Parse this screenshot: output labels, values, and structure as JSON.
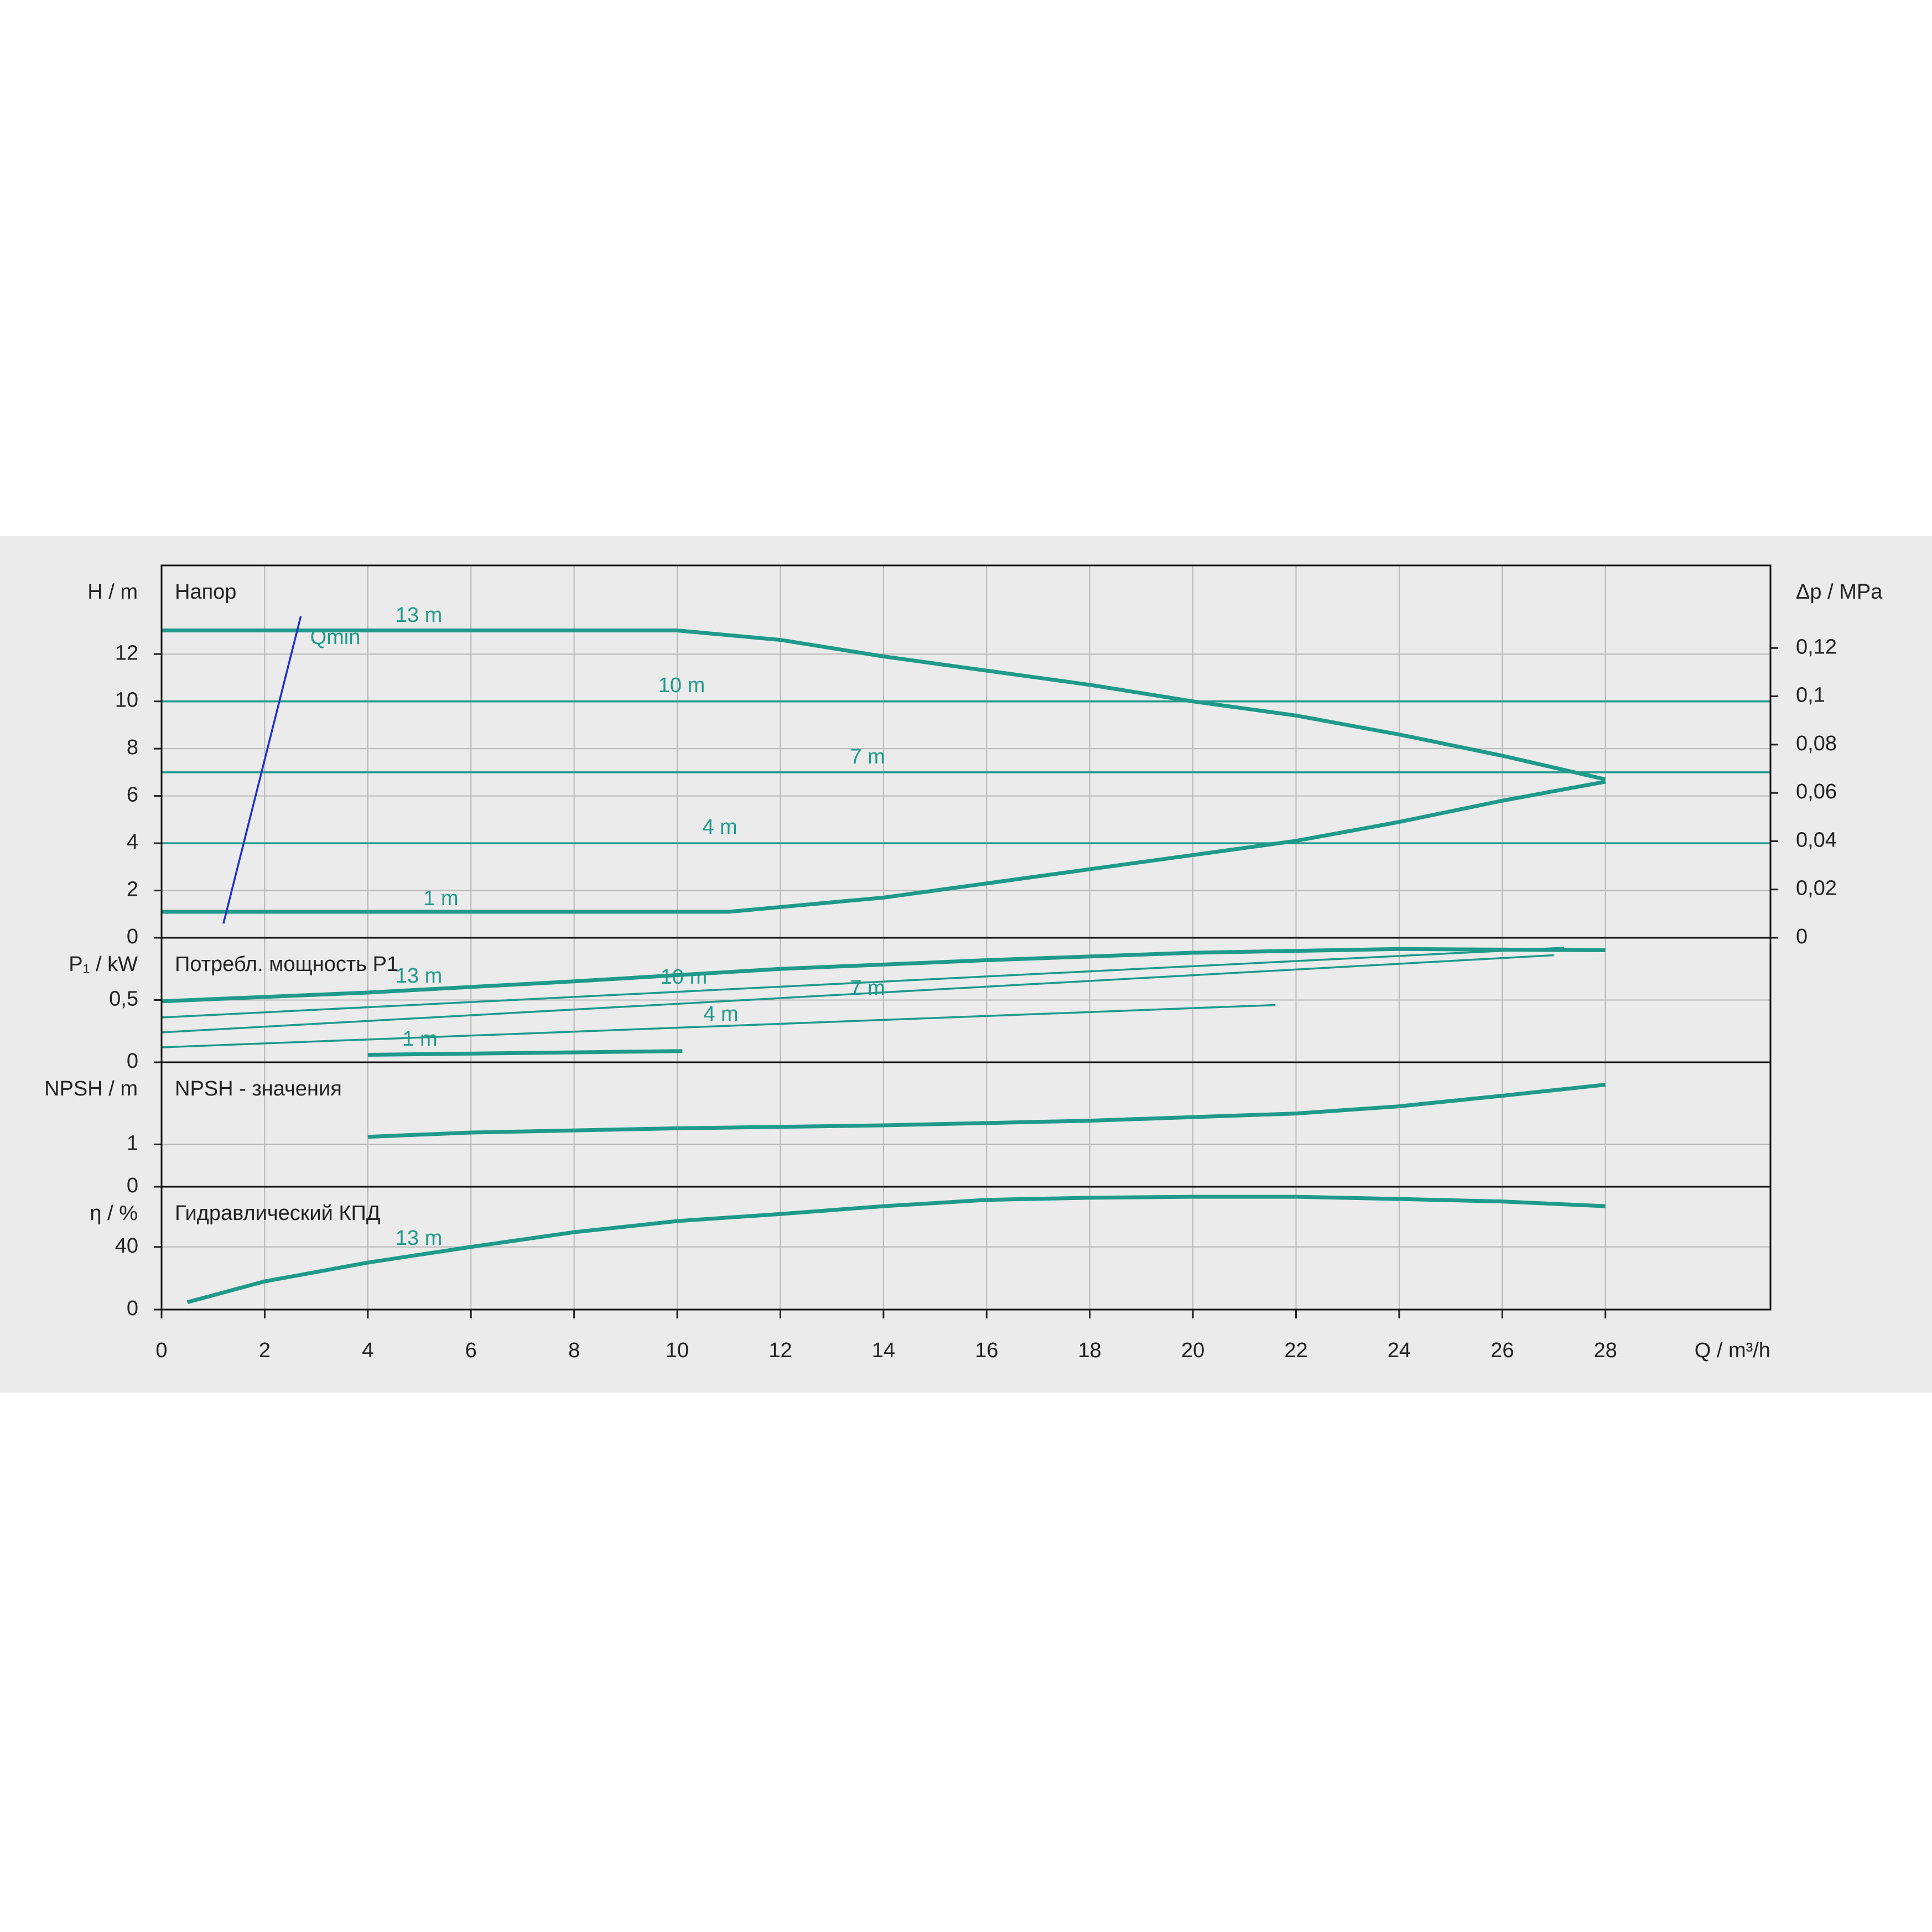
{
  "chart_data": [
    {
      "type": "line",
      "title": "Напор",
      "ylabel": "H / m",
      "y2label": "Δp / MPa",
      "ylim": [
        0,
        15.75
      ],
      "yticks": [
        0,
        2,
        4,
        6,
        8,
        10,
        12
      ],
      "y2lim": [
        0,
        0.1542
      ],
      "y2ticks": [
        0,
        {
          "value": 0.02,
          "label": "0,02"
        },
        {
          "value": 0.04,
          "label": "0,04"
        },
        {
          "value": 0.06,
          "label": "0,06"
        },
        {
          "value": 0.08,
          "label": "0,08"
        },
        {
          "value": 0.1,
          "label": "0,1"
        },
        {
          "value": 0.12,
          "label": "0,12"
        }
      ],
      "grid": true,
      "series": [
        {
          "name": "13 m",
          "color": "#1f9a8a",
          "x": [
            0,
            10,
            12,
            14,
            16,
            18,
            20,
            22,
            24,
            26,
            28
          ],
          "values": [
            13,
            13,
            12.6,
            11.9,
            11.3,
            10.7,
            10,
            9.4,
            8.6,
            7.7,
            6.7
          ]
        },
        {
          "name": "10 m",
          "color": "#1f9a8a",
          "x": [
            0,
            31.2
          ],
          "values": [
            10,
            10
          ]
        },
        {
          "name": "7 m",
          "color": "#1f9a8a",
          "x": [
            0,
            31.2
          ],
          "values": [
            7,
            7
          ]
        },
        {
          "name": "4 m",
          "color": "#1f9a8a",
          "x": [
            0,
            31.2
          ],
          "values": [
            4,
            4
          ]
        },
        {
          "name": "1 m",
          "color": "#1f9a8a",
          "x": [
            0,
            11,
            12,
            14,
            16,
            18,
            20,
            22,
            24,
            26,
            28
          ],
          "values": [
            1.1,
            1.1,
            1.3,
            1.7,
            2.3,
            2.9,
            3.5,
            4.1,
            4.9,
            5.8,
            6.6
          ]
        },
        {
          "name": "Qmin",
          "color": "#2233cc",
          "x": [
            1.2,
            2.7
          ],
          "values": [
            0.6,
            13.6
          ]
        }
      ]
    },
    {
      "type": "line",
      "title": "Потребл. мощность P1",
      "ylabel": "P₁ / kW",
      "ylim": [
        0,
        1.0
      ],
      "yticks": [
        0,
        {
          "value": 0.5,
          "label": "0,5"
        }
      ],
      "grid": true,
      "series": [
        {
          "name": "13 m",
          "color": "#1f9a8a",
          "x": [
            0,
            4,
            8,
            12,
            16,
            20,
            24,
            28
          ],
          "values": [
            0.49,
            0.56,
            0.65,
            0.75,
            0.82,
            0.88,
            0.91,
            0.9
          ]
        },
        {
          "name": "10 m",
          "color": "#1f9a8a",
          "x": [
            0,
            27.2
          ],
          "values": [
            0.36,
            0.92
          ]
        },
        {
          "name": "7 m",
          "color": "#1f9a8a",
          "x": [
            0,
            27
          ],
          "values": [
            0.24,
            0.86
          ]
        },
        {
          "name": "4 m",
          "color": "#1f9a8a",
          "x": [
            0,
            21.6
          ],
          "values": [
            0.12,
            0.46
          ]
        },
        {
          "name": "1 m",
          "color": "#1f9a8a",
          "x": [
            4,
            10.1
          ],
          "values": [
            0.06,
            0.09
          ]
        }
      ]
    },
    {
      "type": "line",
      "title": "NPSH - значения",
      "ylabel": "NPSH / m",
      "ylim": [
        0,
        2.94
      ],
      "yticks": [
        0,
        1
      ],
      "grid": true,
      "color": "#1f9a8a",
      "x": [
        4,
        6,
        10,
        14,
        18,
        22,
        24,
        26,
        28
      ],
      "values": [
        1.18,
        1.28,
        1.38,
        1.45,
        1.56,
        1.73,
        1.9,
        2.15,
        2.41
      ]
    },
    {
      "type": "line",
      "title": "Гидравлический КПД",
      "ylabel": "η / %",
      "ylim": [
        0,
        78.4
      ],
      "yticks": [
        0,
        40
      ],
      "grid": true,
      "xlabel": "Q / m³/h",
      "xlim": [
        0,
        31.2
      ],
      "xticks": [
        0,
        2,
        4,
        6,
        8,
        10,
        12,
        14,
        16,
        18,
        20,
        22,
        24,
        26,
        28
      ],
      "series": [
        {
          "name": "13 m",
          "color": "#1f9a8a",
          "x": [
            0.5,
            2,
            4,
            6,
            8,
            10,
            12,
            14,
            16,
            18,
            20,
            22,
            24,
            26,
            28
          ],
          "values": [
            4.7,
            18,
            30,
            40,
            49.4,
            56.5,
            61,
            66,
            70,
            71.4,
            72,
            72,
            70.6,
            69,
            66
          ]
        }
      ]
    }
  ]
}
